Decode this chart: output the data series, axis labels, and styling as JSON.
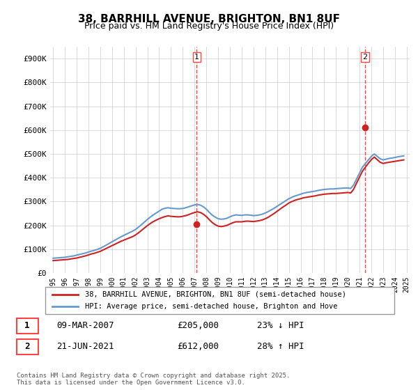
{
  "title_line1": "38, BARRHILL AVENUE, BRIGHTON, BN1 8UF",
  "title_line2": "Price paid vs. HM Land Registry's House Price Index (HPI)",
  "ylabel": "",
  "ylim": [
    0,
    950000
  ],
  "yticks": [
    0,
    100000,
    200000,
    300000,
    400000,
    500000,
    600000,
    700000,
    800000,
    900000
  ],
  "ytick_labels": [
    "£0",
    "£100K",
    "£200K",
    "£300K",
    "£400K",
    "£500K",
    "£600K",
    "£700K",
    "£800K",
    "£900K"
  ],
  "background_color": "#ffffff",
  "grid_color": "#cccccc",
  "hpi_color": "#6699cc",
  "price_color": "#cc2222",
  "dashed_line_color": "#ff4444",
  "marker1_x": 2007.19,
  "marker1_label": "1",
  "marker2_x": 2021.47,
  "marker2_label": "2",
  "legend_line1": "38, BARRHILL AVENUE, BRIGHTON, BN1 8UF (semi-detached house)",
  "legend_line2": "HPI: Average price, semi-detached house, Brighton and Hove",
  "table_row1_num": "1",
  "table_row1_date": "09-MAR-2007",
  "table_row1_price": "£205,000",
  "table_row1_hpi": "23% ↓ HPI",
  "table_row2_num": "2",
  "table_row2_date": "21-JUN-2021",
  "table_row2_price": "£612,000",
  "table_row2_hpi": "28% ↑ HPI",
  "footer": "Contains HM Land Registry data © Crown copyright and database right 2025.\nThis data is licensed under the Open Government Licence v3.0.",
  "hpi_years": [
    1995.0,
    1995.25,
    1995.5,
    1995.75,
    1996.0,
    1996.25,
    1996.5,
    1996.75,
    1997.0,
    1997.25,
    1997.5,
    1997.75,
    1998.0,
    1998.25,
    1998.5,
    1998.75,
    1999.0,
    1999.25,
    1999.5,
    1999.75,
    2000.0,
    2000.25,
    2000.5,
    2000.75,
    2001.0,
    2001.25,
    2001.5,
    2001.75,
    2002.0,
    2002.25,
    2002.5,
    2002.75,
    2003.0,
    2003.25,
    2003.5,
    2003.75,
    2004.0,
    2004.25,
    2004.5,
    2004.75,
    2005.0,
    2005.25,
    2005.5,
    2005.75,
    2006.0,
    2006.25,
    2006.5,
    2006.75,
    2007.0,
    2007.25,
    2007.5,
    2007.75,
    2008.0,
    2008.25,
    2008.5,
    2008.75,
    2009.0,
    2009.25,
    2009.5,
    2009.75,
    2010.0,
    2010.25,
    2010.5,
    2010.75,
    2011.0,
    2011.25,
    2011.5,
    2011.75,
    2012.0,
    2012.25,
    2012.5,
    2012.75,
    2013.0,
    2013.25,
    2013.5,
    2013.75,
    2014.0,
    2014.25,
    2014.5,
    2014.75,
    2015.0,
    2015.25,
    2015.5,
    2015.75,
    2016.0,
    2016.25,
    2016.5,
    2016.75,
    2017.0,
    2017.25,
    2017.5,
    2017.75,
    2018.0,
    2018.25,
    2018.5,
    2018.75,
    2019.0,
    2019.25,
    2019.5,
    2019.75,
    2020.0,
    2020.25,
    2020.5,
    2020.75,
    2021.0,
    2021.25,
    2021.5,
    2021.75,
    2022.0,
    2022.25,
    2022.5,
    2022.75,
    2023.0,
    2023.25,
    2023.5,
    2023.75,
    2024.0,
    2024.25,
    2024.5,
    2024.75
  ],
  "hpi_values": [
    62000,
    63000,
    64000,
    65000,
    66000,
    68000,
    70000,
    72000,
    75000,
    78000,
    81000,
    84000,
    88000,
    92000,
    95000,
    99000,
    104000,
    110000,
    117000,
    124000,
    131000,
    138000,
    145000,
    152000,
    158000,
    164000,
    170000,
    176000,
    183000,
    193000,
    203000,
    214000,
    225000,
    235000,
    244000,
    252000,
    260000,
    268000,
    272000,
    274000,
    272000,
    271000,
    270000,
    270000,
    271000,
    274000,
    278000,
    282000,
    286000,
    288000,
    285000,
    278000,
    268000,
    255000,
    243000,
    235000,
    228000,
    226000,
    227000,
    230000,
    236000,
    241000,
    244000,
    243000,
    242000,
    244000,
    244000,
    243000,
    241000,
    242000,
    244000,
    247000,
    252000,
    258000,
    265000,
    272000,
    280000,
    288000,
    296000,
    304000,
    312000,
    318000,
    323000,
    327000,
    331000,
    335000,
    338000,
    340000,
    342000,
    344000,
    347000,
    349000,
    351000,
    352000,
    353000,
    353000,
    354000,
    355000,
    356000,
    357000,
    357000,
    355000,
    370000,
    395000,
    420000,
    445000,
    460000,
    475000,
    490000,
    500000,
    490000,
    480000,
    475000,
    478000,
    481000,
    483000,
    485000,
    488000,
    490000,
    492000
  ],
  "price_years": [
    1995.0,
    1995.25,
    1995.5,
    1995.75,
    1996.0,
    1996.25,
    1996.5,
    1996.75,
    1997.0,
    1997.25,
    1997.5,
    1997.75,
    1998.0,
    1998.25,
    1998.5,
    1998.75,
    1999.0,
    1999.25,
    1999.5,
    1999.75,
    2000.0,
    2000.25,
    2000.5,
    2000.75,
    2001.0,
    2001.25,
    2001.5,
    2001.75,
    2002.0,
    2002.25,
    2002.5,
    2002.75,
    2003.0,
    2003.25,
    2003.5,
    2003.75,
    2004.0,
    2004.25,
    2004.5,
    2004.75,
    2005.0,
    2005.25,
    2005.5,
    2005.75,
    2006.0,
    2006.25,
    2006.5,
    2006.75,
    2007.0,
    2007.25,
    2007.5,
    2007.75,
    2008.0,
    2008.25,
    2008.5,
    2008.75,
    2009.0,
    2009.25,
    2009.5,
    2009.75,
    2010.0,
    2010.25,
    2010.5,
    2010.75,
    2011.0,
    2011.25,
    2011.5,
    2011.75,
    2012.0,
    2012.25,
    2012.5,
    2012.75,
    2013.0,
    2013.25,
    2013.5,
    2013.75,
    2014.0,
    2014.25,
    2014.5,
    2014.75,
    2015.0,
    2015.25,
    2015.5,
    2015.75,
    2016.0,
    2016.25,
    2016.5,
    2016.75,
    2017.0,
    2017.25,
    2017.5,
    2017.75,
    2018.0,
    2018.25,
    2018.5,
    2018.75,
    2019.0,
    2019.25,
    2019.5,
    2019.75,
    2020.0,
    2020.25,
    2020.5,
    2020.75,
    2021.0,
    2021.25,
    2021.5,
    2021.75,
    2022.0,
    2022.25,
    2022.5,
    2022.75,
    2023.0,
    2023.25,
    2023.5,
    2023.75,
    2024.0,
    2024.25,
    2024.5,
    2024.75
  ],
  "price_values": [
    52000,
    53000,
    54000,
    55000,
    56000,
    57000,
    59000,
    61000,
    63000,
    66000,
    69000,
    72000,
    76000,
    80000,
    83000,
    87000,
    91000,
    97000,
    103000,
    109000,
    115000,
    121000,
    127000,
    133000,
    138000,
    143000,
    148000,
    153000,
    160000,
    169000,
    179000,
    189000,
    199000,
    208000,
    216000,
    222000,
    228000,
    233000,
    237000,
    240000,
    238000,
    237000,
    236000,
    236000,
    238000,
    241000,
    245000,
    250000,
    254000,
    257000,
    254000,
    247000,
    237000,
    224000,
    212000,
    203000,
    197000,
    195000,
    197000,
    200000,
    206000,
    211000,
    215000,
    215000,
    215000,
    217000,
    218000,
    217000,
    216000,
    218000,
    220000,
    223000,
    228000,
    234000,
    242000,
    250000,
    259000,
    268000,
    277000,
    285000,
    294000,
    300000,
    305000,
    309000,
    312000,
    316000,
    318000,
    320000,
    322000,
    324000,
    327000,
    329000,
    331000,
    332000,
    333000,
    334000,
    334000,
    335000,
    336000,
    337000,
    338000,
    336000,
    352000,
    378000,
    403000,
    428000,
    445000,
    461000,
    476000,
    487000,
    476000,
    465000,
    460000,
    463000,
    465000,
    467000,
    469000,
    471000,
    473000,
    475000
  ]
}
